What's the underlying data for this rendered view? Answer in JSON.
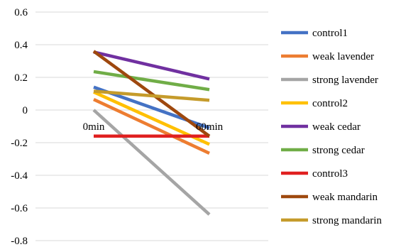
{
  "chart_data": {
    "type": "line",
    "categories": [
      "0min",
      "60min"
    ],
    "ylim": [
      -0.8,
      0.6
    ],
    "ytick_step": 0.2,
    "yticks": [
      "0.6",
      "0.4",
      "0.2",
      "0",
      "-0.2",
      "-0.4",
      "-0.6",
      "-0.8"
    ],
    "grid": true,
    "legend_position": "right",
    "series": [
      {
        "name": "control1",
        "color": "#4472C4",
        "values": [
          0.14,
          -0.11
        ]
      },
      {
        "name": "weak lavender",
        "color": "#ED7D31",
        "values": [
          0.065,
          -0.265
        ]
      },
      {
        "name": "strong lavender",
        "color": "#A5A5A5",
        "values": [
          0.0,
          -0.64
        ]
      },
      {
        "name": "control2",
        "color": "#FFC000",
        "values": [
          0.11,
          -0.21
        ]
      },
      {
        "name": "weak cedar",
        "color": "#7030A0",
        "values": [
          0.355,
          0.19
        ]
      },
      {
        "name": "strong cedar",
        "color": "#70AD47",
        "values": [
          0.235,
          0.125
        ]
      },
      {
        "name": "control3",
        "color": "#E02020",
        "values": [
          -0.16,
          -0.16
        ]
      },
      {
        "name": "weak mandarin",
        "color": "#9E480E",
        "values": [
          0.36,
          -0.16
        ]
      },
      {
        "name": "strong mandarin",
        "color": "#C59B2B",
        "values": [
          0.115,
          0.06
        ]
      }
    ]
  }
}
